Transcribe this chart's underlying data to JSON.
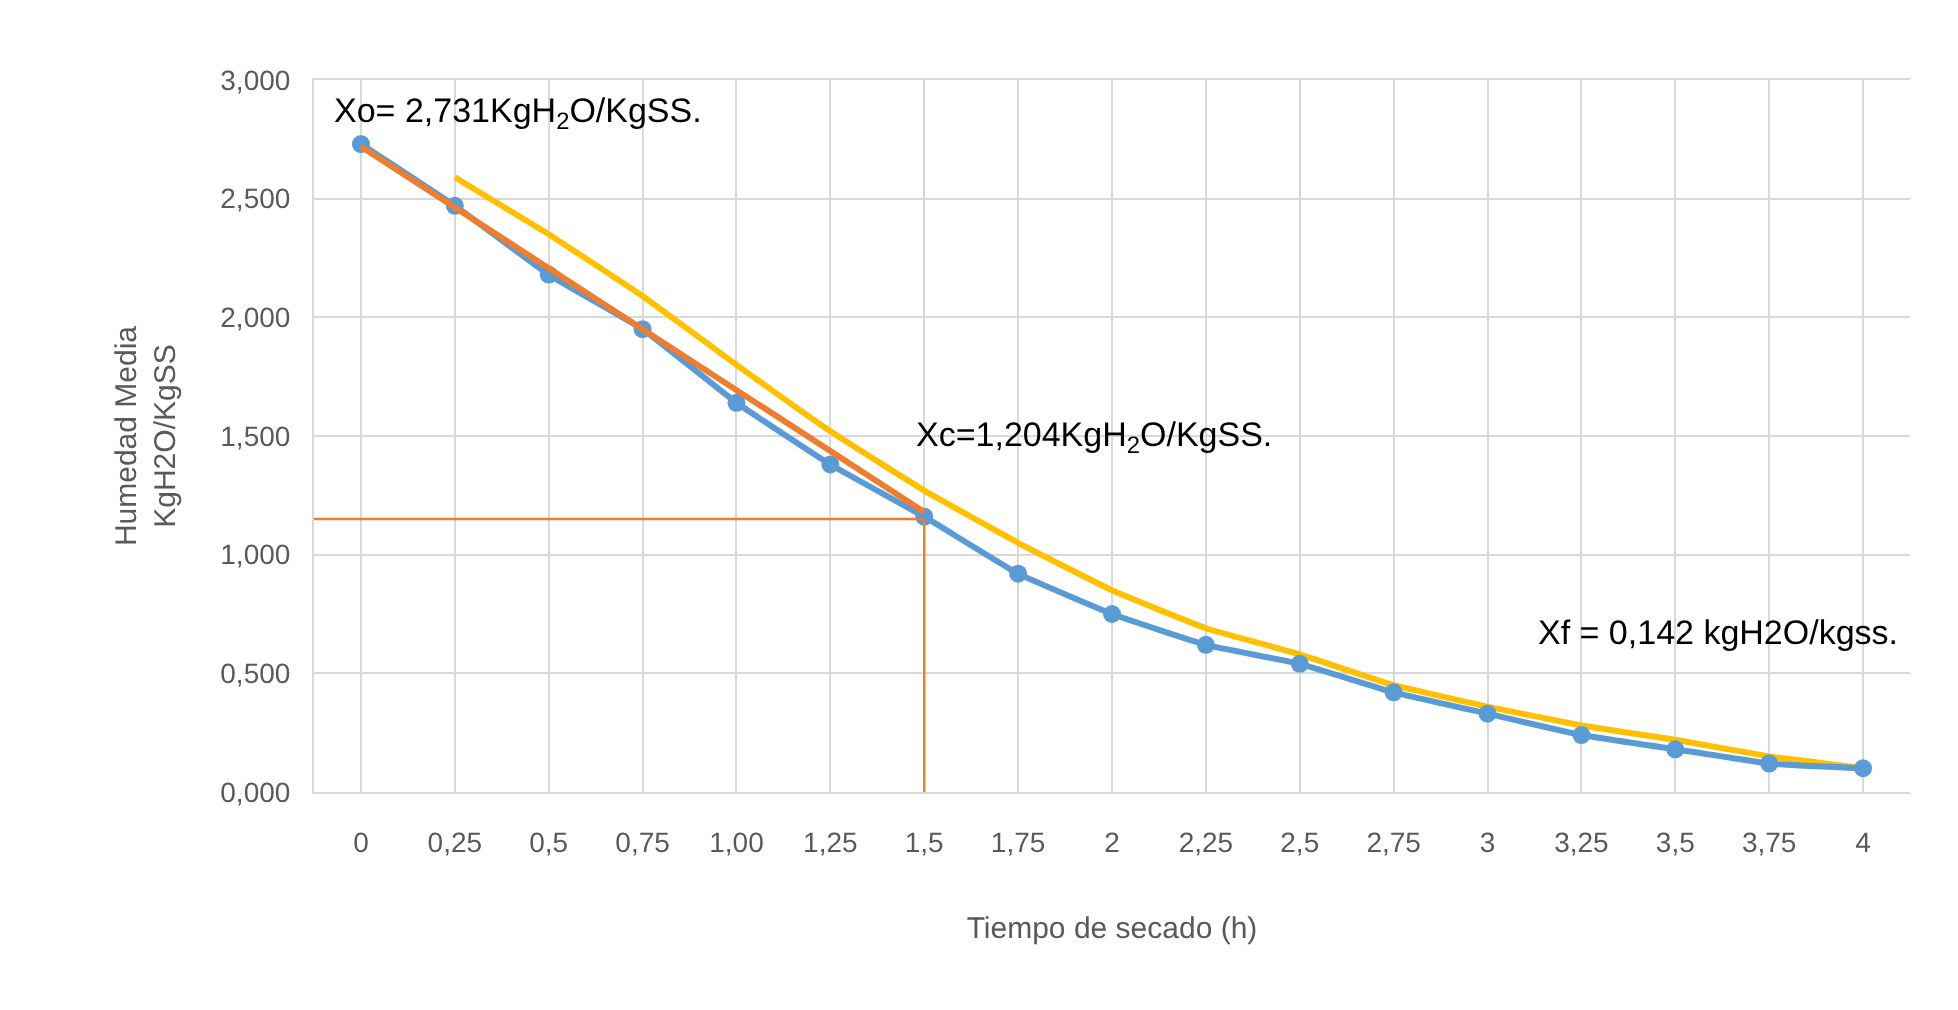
{
  "chart_data": {
    "type": "line",
    "xlabel": "Tiempo de secado (h)",
    "ylabel": "Humedad Media\nKgH2O/KgSS",
    "x": [
      0,
      0.25,
      0.5,
      0.75,
      1.0,
      1.25,
      1.5,
      1.75,
      2,
      2.25,
      2.5,
      2.75,
      3,
      3.25,
      3.5,
      3.75,
      4
    ],
    "xlim": [
      -0.125,
      4.125
    ],
    "xticks": [
      0,
      {
        "value": 0.25,
        "label": "0,25"
      },
      {
        "value": 0.5,
        "label": "0,5"
      },
      {
        "value": 0.75,
        "label": "0,75"
      },
      {
        "value": 1.0,
        "label": "1,00"
      },
      {
        "value": 1.25,
        "label": "1,25"
      },
      {
        "value": 1.5,
        "label": "1,5"
      },
      {
        "value": 1.75,
        "label": "1,75"
      },
      2,
      {
        "value": 2.25,
        "label": "2,25"
      },
      {
        "value": 2.5,
        "label": "2,5"
      },
      {
        "value": 2.75,
        "label": "2,75"
      },
      3,
      {
        "value": 3.25,
        "label": "3,25"
      },
      {
        "value": 3.5,
        "label": "3,5"
      },
      {
        "value": 3.75,
        "label": "3,75"
      },
      4
    ],
    "ylim": [
      0,
      3
    ],
    "yticks": [
      {
        "value": 0,
        "label": "0,000"
      },
      {
        "value": 0.5,
        "label": "0,500"
      },
      {
        "value": 1,
        "label": "1,000"
      },
      {
        "value": 1.5,
        "label": "1,500"
      },
      {
        "value": 2,
        "label": "2,000"
      },
      {
        "value": 2.5,
        "label": "2,500"
      },
      {
        "value": 3,
        "label": "3,000"
      }
    ],
    "grid": true,
    "series": [
      {
        "color": "#ffc000",
        "marker": "none",
        "x": [
          0.25,
          0.5,
          0.75,
          1.0,
          1.25,
          1.5,
          1.75,
          2,
          2.25,
          2.5,
          2.75,
          3,
          3.25,
          3.5,
          3.75,
          4
        ],
        "values": [
          2.59,
          2.35,
          2.09,
          1.8,
          1.52,
          1.27,
          1.05,
          0.85,
          0.69,
          0.58,
          0.45,
          0.36,
          0.28,
          0.22,
          0.15,
          0.1
        ]
      },
      {
        "color": "#5b9bd5",
        "marker": "circle",
        "values": [
          2.73,
          2.47,
          2.18,
          1.95,
          1.64,
          1.38,
          1.16,
          0.92,
          0.75,
          0.62,
          0.54,
          0.42,
          0.33,
          0.24,
          0.18,
          0.12,
          0.1
        ]
      },
      {
        "color": "#ed7d31",
        "marker": "none",
        "x": [
          0,
          1.5
        ],
        "values": [
          2.72,
          1.18
        ]
      }
    ],
    "ref_lines": [
      {
        "axis": "y",
        "value": 1.15,
        "color": "#ed7d31"
      },
      {
        "axis": "x",
        "value": 1.5,
        "color": "#ed7d31"
      }
    ],
    "annotations": [
      "Xo= 2,731KgH$_{2}$O/KgSS.",
      "Xc=1,204KgH$_{2}$O/KgSS.",
      "Xf = 0,142 kgH2O/kgss."
    ]
  }
}
